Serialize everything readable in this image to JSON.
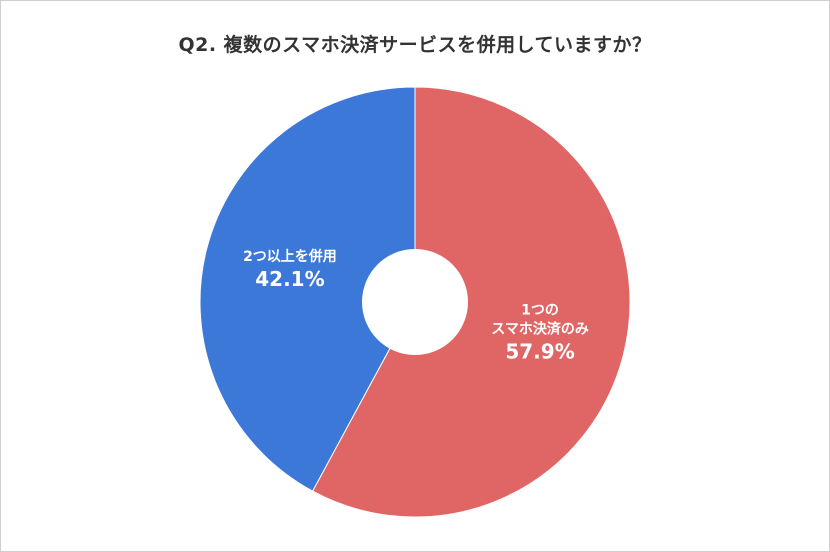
{
  "chart_data": {
    "type": "pie",
    "donut": true,
    "title": "Q2. 複数のスマホ決済サービスを併用していますか？",
    "categories": [
      "1つのスマホ決済のみ",
      "2つ以上を併用"
    ],
    "label_lines": [
      [
        "1つの",
        "スマホ決済のみ"
      ],
      [
        "2つ以上を併用"
      ]
    ],
    "values": [
      57.9,
      42.1
    ],
    "value_labels": [
      "57.9%",
      "42.1%"
    ],
    "colors": [
      "#e06666",
      "#3c78d8"
    ],
    "start": "12 o'clock",
    "direction": "clockwise",
    "legend": "none"
  }
}
